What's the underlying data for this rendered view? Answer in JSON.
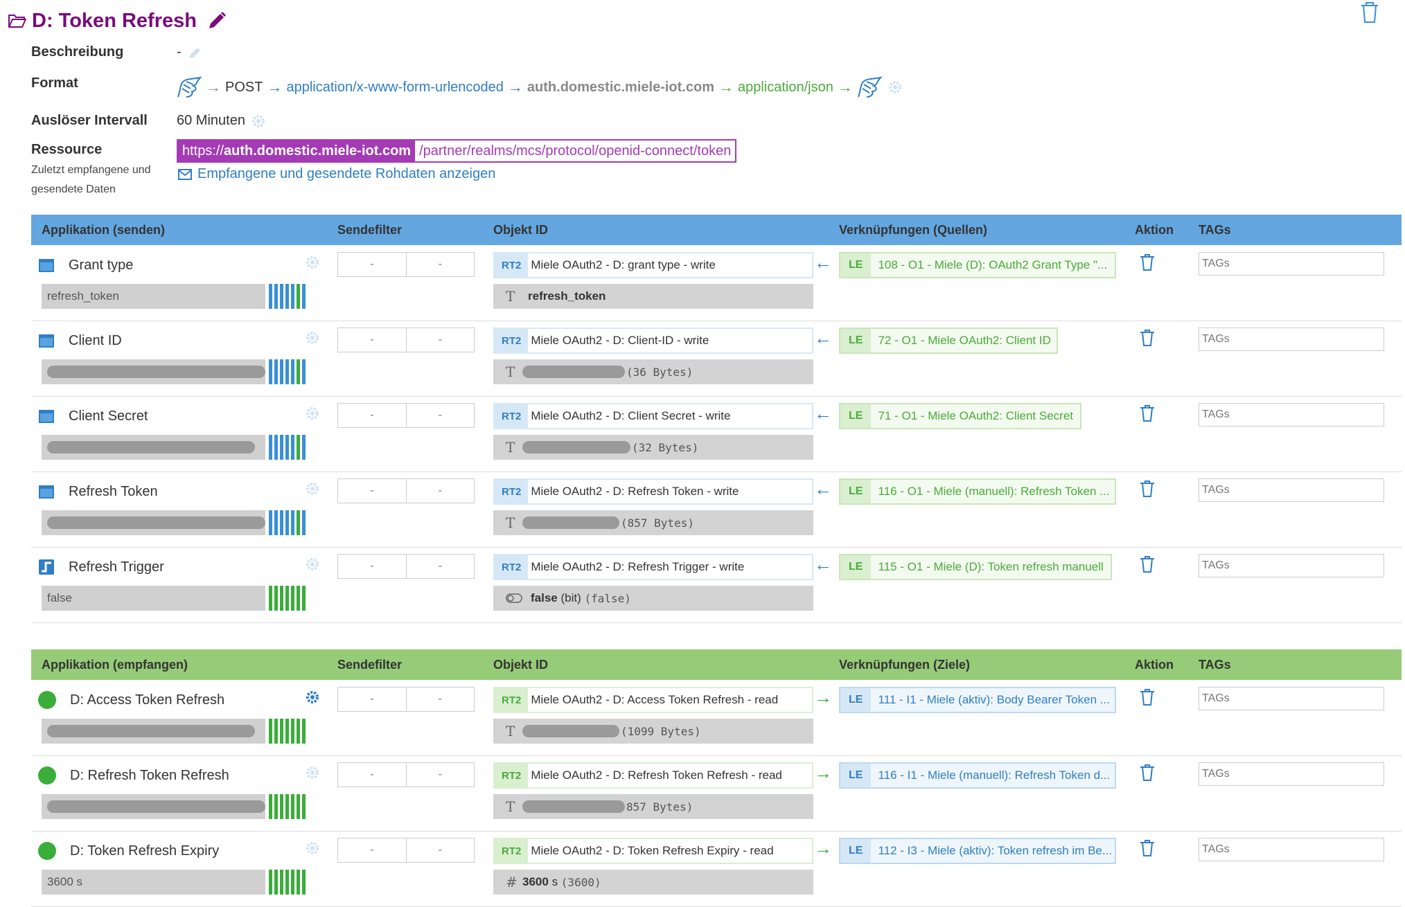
{
  "header": {
    "title": "D: Token Refresh",
    "labels": {
      "beschreibung": "Beschreibung",
      "format": "Format",
      "interval": "Auslöser Intervall",
      "ressource": "Ressource",
      "received": "Zuletzt empfangene und",
      "received2": "gesendete Daten"
    },
    "beschreibung_value": "-",
    "format": {
      "method": "POST",
      "request_type": "application/x-www-form-urlencoded",
      "host": "auth.domestic.miele-iot.com",
      "response_type": "application/json"
    },
    "interval_value": "60 Minuten",
    "resource": {
      "scheme": "https://",
      "host": "auth.domestic.miele-iot.com",
      "path": "/partner/realms/mcs/protocol/openid-connect/token"
    },
    "rawdata_link": "Empfangene und gesendete Rohdaten anzeigen"
  },
  "send_table": {
    "headers": [
      "Applikation (senden)",
      "Sendefilter",
      "Objekt ID",
      "Verknüpfungen (Quellen)",
      "Aktion",
      "TAGs"
    ],
    "rows": [
      {
        "name": "Grant type",
        "value": "refresh_token",
        "filter_from": "-",
        "filter_to": "-",
        "badge": "RT2",
        "object": "Miele OAuth2 - D: grant type - write",
        "obj_value": "refresh_token",
        "obj_suffix": "",
        "link_badge": "LE",
        "link": "108 - O1 - Miele (D): OAuth2 Grant Type \"...",
        "tags": "TAGs"
      },
      {
        "name": "Client ID",
        "value": "",
        "filter_from": "-",
        "filter_to": "-",
        "badge": "RT2",
        "object": "Miele OAuth2 - D: Client-ID - write",
        "obj_value": "",
        "obj_suffix": "(36 Bytes)",
        "link_badge": "LE",
        "link": "72 - O1 - Miele OAuth2: Client ID",
        "tags": "TAGs"
      },
      {
        "name": "Client Secret",
        "value": "",
        "filter_from": "-",
        "filter_to": "-",
        "badge": "RT2",
        "object": "Miele OAuth2 - D: Client Secret - write",
        "obj_value": "",
        "obj_suffix": "(32 Bytes)",
        "link_badge": "LE",
        "link": "71 - O1 - Miele OAuth2: Client Secret",
        "tags": "TAGs"
      },
      {
        "name": "Refresh Token",
        "value": "",
        "filter_from": "-",
        "filter_to": "-",
        "badge": "RT2",
        "object": "Miele OAuth2 - D: Refresh Token - write",
        "obj_value": "",
        "obj_suffix": "(857 Bytes)",
        "link_badge": "LE",
        "link": "116 - O1 - Miele (manuell): Refresh Token ...",
        "tags": "TAGs"
      },
      {
        "name": "Refresh Trigger",
        "value": "false",
        "filter_from": "-",
        "filter_to": "-",
        "badge": "RT2",
        "object": "Miele OAuth2 - D: Refresh Trigger - write",
        "obj_value": "false",
        "obj_unit": "(bit)",
        "obj_suffix": "(false)",
        "link_badge": "LE",
        "link": "115 - O1 - Miele (D): Token refresh manuell",
        "tags": "TAGs"
      }
    ]
  },
  "recv_table": {
    "headers": [
      "Applikation (empfangen)",
      "Sendefilter",
      "Objekt ID",
      "Verknüpfungen (Ziele)",
      "Aktion",
      "TAGs"
    ],
    "rows": [
      {
        "name": "D: Access Token Refresh",
        "value": "",
        "filter_from": "-",
        "filter_to": "-",
        "badge": "RT2",
        "object": "Miele OAuth2 - D: Access Token Refresh - read",
        "obj_value": "",
        "obj_suffix": "(1099 Bytes)",
        "link_badge": "LE",
        "link": "111 - I1 - Miele (aktiv): Body Bearer Token ...",
        "tags": "TAGs"
      },
      {
        "name": "D: Refresh Token Refresh",
        "value": "",
        "filter_from": "-",
        "filter_to": "-",
        "badge": "RT2",
        "object": "Miele OAuth2 - D: Refresh Token Refresh - read",
        "obj_value": "",
        "obj_suffix": "857 Bytes)",
        "link_badge": "LE",
        "link": "116 - I1 - Miele (manuell): Refresh Token d...",
        "tags": "TAGs"
      },
      {
        "name": "D: Token Refresh Expiry",
        "value": "3600 s",
        "filter_from": "-",
        "filter_to": "-",
        "badge": "RT2",
        "object": "Miele OAuth2 - D: Token Refresh Expiry - read",
        "obj_value": "3600",
        "obj_unit": "s",
        "obj_suffix": "(3600)",
        "link_badge": "LE",
        "link": "112 - I3 - Miele (aktiv): Token refresh im Be...",
        "tags": "TAGs"
      }
    ]
  },
  "colors": {
    "title": "#7a0a7a",
    "send_header": "#64a6df",
    "recv_header": "#96cb78",
    "resource": "#a43ab5",
    "link_blue": "#2f7ec4",
    "link_green": "#4aaa3a"
  }
}
